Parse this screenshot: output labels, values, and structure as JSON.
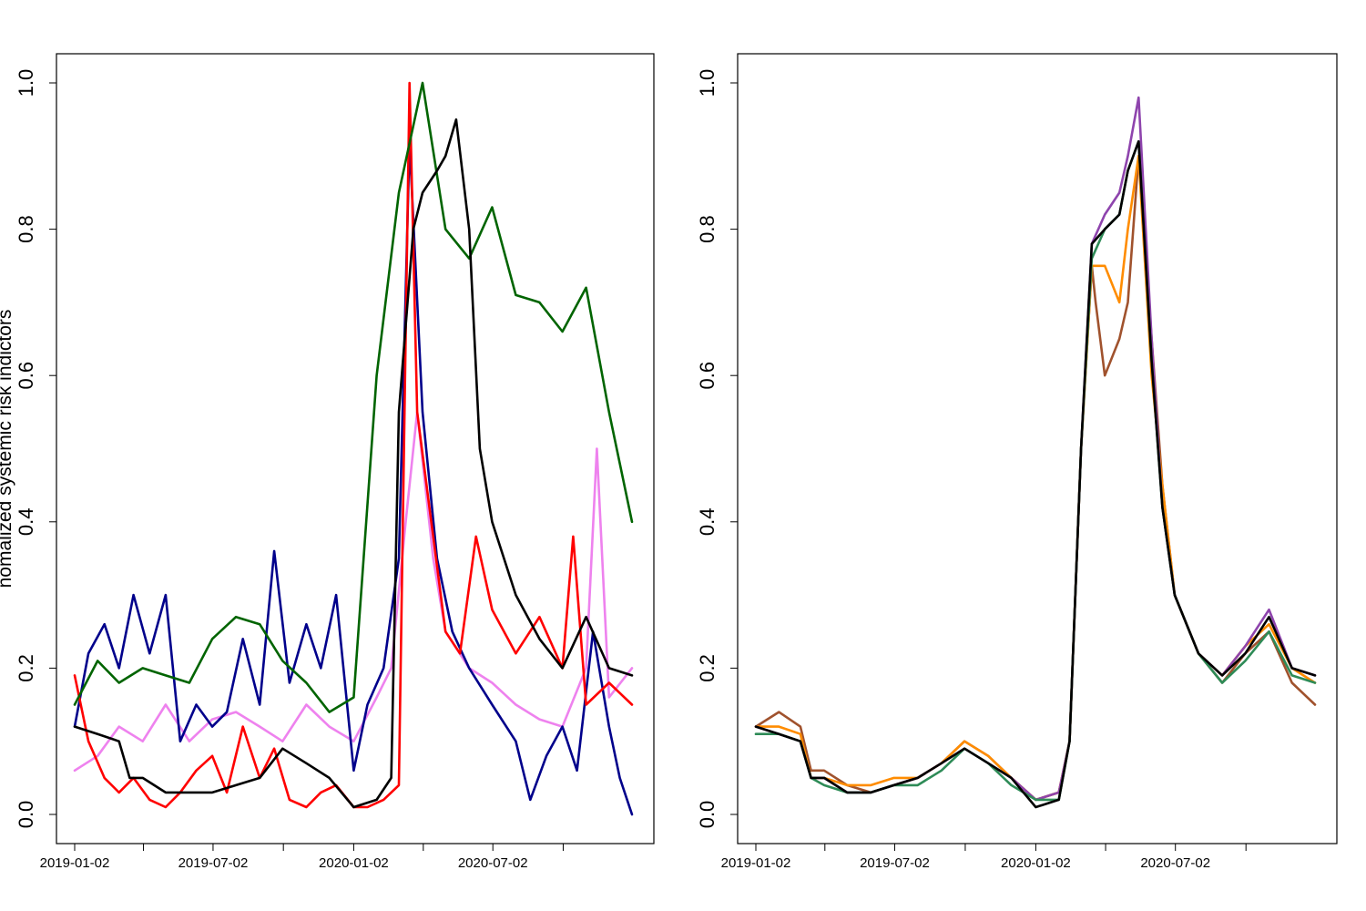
{
  "chart_data": [
    {
      "type": "line",
      "ylabel": "nomalized systemic risk indictors",
      "xlabel": "",
      "ylim": [
        0,
        1
      ],
      "y_ticks": [
        "0.0",
        "0.2",
        "0.4",
        "0.6",
        "0.8",
        "1.0"
      ],
      "x_tick_labels": [
        "2019-01-02",
        "2019-07-02",
        "2020-01-02",
        "2020-07-02"
      ],
      "x_tick_dates": [
        "2019-01-02",
        "2019-04-02",
        "2019-07-02",
        "2019-10-02",
        "2020-01-02",
        "2020-04-02",
        "2020-07-02",
        "2020-10-02"
      ],
      "x_range": [
        "2019-01-02",
        "2020-12-31"
      ],
      "grid": false,
      "series": [
        {
          "color": "#ee82ee",
          "x": [
            "2019-01-02",
            "2019-02-01",
            "2019-03-01",
            "2019-04-01",
            "2019-05-01",
            "2019-06-01",
            "2019-07-01",
            "2019-08-01",
            "2019-09-01",
            "2019-10-01",
            "2019-11-01",
            "2019-12-01",
            "2020-01-02",
            "2020-02-01",
            "2020-02-20",
            "2020-03-10",
            "2020-03-25",
            "2020-04-15",
            "2020-05-01",
            "2020-06-01",
            "2020-07-01",
            "2020-08-01",
            "2020-09-01",
            "2020-10-01",
            "2020-11-01",
            "2020-11-15",
            "2020-12-01",
            "2020-12-31"
          ],
          "y": [
            0.06,
            0.08,
            0.12,
            0.1,
            0.15,
            0.1,
            0.13,
            0.14,
            0.12,
            0.1,
            0.15,
            0.12,
            0.1,
            0.16,
            0.2,
            0.4,
            0.55,
            0.35,
            0.25,
            0.2,
            0.18,
            0.15,
            0.13,
            0.12,
            0.2,
            0.5,
            0.16,
            0.2
          ]
        },
        {
          "color": "#00008b",
          "x": [
            "2019-01-02",
            "2019-01-20",
            "2019-02-10",
            "2019-03-01",
            "2019-03-20",
            "2019-04-10",
            "2019-05-01",
            "2019-05-20",
            "2019-06-10",
            "2019-07-01",
            "2019-07-20",
            "2019-08-10",
            "2019-09-01",
            "2019-09-20",
            "2019-10-10",
            "2019-11-01",
            "2019-11-20",
            "2019-12-10",
            "2020-01-02",
            "2020-01-20",
            "2020-02-10",
            "2020-03-01",
            "2020-03-15",
            "2020-04-01",
            "2020-04-20",
            "2020-05-10",
            "2020-06-01",
            "2020-07-01",
            "2020-08-01",
            "2020-08-20",
            "2020-09-10",
            "2020-10-01",
            "2020-10-20",
            "2020-11-10",
            "2020-12-01",
            "2020-12-15",
            "2020-12-31"
          ],
          "y": [
            0.12,
            0.22,
            0.26,
            0.2,
            0.3,
            0.22,
            0.3,
            0.1,
            0.15,
            0.12,
            0.14,
            0.24,
            0.15,
            0.36,
            0.18,
            0.26,
            0.2,
            0.3,
            0.06,
            0.15,
            0.2,
            0.35,
            0.92,
            0.55,
            0.35,
            0.25,
            0.2,
            0.15,
            0.1,
            0.02,
            0.08,
            0.12,
            0.06,
            0.25,
            0.12,
            0.05,
            0.0
          ]
        },
        {
          "color": "#ff0000",
          "x": [
            "2019-01-02",
            "2019-01-20",
            "2019-02-10",
            "2019-03-01",
            "2019-03-20",
            "2019-04-10",
            "2019-05-01",
            "2019-05-20",
            "2019-06-10",
            "2019-07-01",
            "2019-07-20",
            "2019-08-10",
            "2019-09-01",
            "2019-09-20",
            "2019-10-10",
            "2019-11-01",
            "2019-11-20",
            "2019-12-10",
            "2020-01-02",
            "2020-01-20",
            "2020-02-10",
            "2020-03-01",
            "2020-03-15",
            "2020-03-25",
            "2020-04-10",
            "2020-05-01",
            "2020-05-20",
            "2020-06-10",
            "2020-07-01",
            "2020-08-01",
            "2020-09-01",
            "2020-10-01",
            "2020-10-15",
            "2020-11-01",
            "2020-12-01",
            "2020-12-31"
          ],
          "y": [
            0.19,
            0.1,
            0.05,
            0.03,
            0.05,
            0.02,
            0.01,
            0.03,
            0.06,
            0.08,
            0.03,
            0.12,
            0.05,
            0.09,
            0.02,
            0.01,
            0.03,
            0.04,
            0.01,
            0.01,
            0.02,
            0.04,
            1.0,
            0.55,
            0.42,
            0.25,
            0.22,
            0.38,
            0.28,
            0.22,
            0.27,
            0.2,
            0.38,
            0.15,
            0.18,
            0.15
          ]
        },
        {
          "color": "#006400",
          "x": [
            "2019-01-02",
            "2019-02-01",
            "2019-03-01",
            "2019-04-01",
            "2019-05-01",
            "2019-06-01",
            "2019-07-01",
            "2019-08-01",
            "2019-09-01",
            "2019-10-01",
            "2019-11-01",
            "2019-12-01",
            "2020-01-02",
            "2020-02-01",
            "2020-03-01",
            "2020-04-01",
            "2020-05-01",
            "2020-06-01",
            "2020-07-01",
            "2020-08-01",
            "2020-09-01",
            "2020-10-01",
            "2020-11-01",
            "2020-12-01",
            "2020-12-31"
          ],
          "y": [
            0.15,
            0.21,
            0.18,
            0.2,
            0.19,
            0.18,
            0.24,
            0.27,
            0.26,
            0.21,
            0.18,
            0.14,
            0.16,
            0.6,
            0.85,
            1.0,
            0.8,
            0.76,
            0.83,
            0.71,
            0.7,
            0.66,
            0.72,
            0.55,
            0.4
          ]
        },
        {
          "color": "#000000",
          "x": [
            "2019-01-02",
            "2019-02-01",
            "2019-03-01",
            "2019-03-15",
            "2019-04-01",
            "2019-05-01",
            "2019-06-01",
            "2019-07-01",
            "2019-08-01",
            "2019-09-01",
            "2019-10-01",
            "2019-11-01",
            "2019-12-01",
            "2020-01-02",
            "2020-02-01",
            "2020-02-20",
            "2020-03-01",
            "2020-03-20",
            "2020-04-01",
            "2020-04-20",
            "2020-05-01",
            "2020-05-15",
            "2020-06-01",
            "2020-06-15",
            "2020-07-01",
            "2020-08-01",
            "2020-09-01",
            "2020-10-01",
            "2020-11-01",
            "2020-12-01",
            "2020-12-31"
          ],
          "y": [
            0.12,
            0.11,
            0.1,
            0.05,
            0.05,
            0.03,
            0.03,
            0.03,
            0.04,
            0.05,
            0.09,
            0.07,
            0.05,
            0.01,
            0.02,
            0.05,
            0.55,
            0.8,
            0.85,
            0.88,
            0.9,
            0.95,
            0.8,
            0.5,
            0.4,
            0.3,
            0.24,
            0.2,
            0.27,
            0.2,
            0.19
          ]
        }
      ]
    },
    {
      "type": "line",
      "ylabel": "",
      "xlabel": "",
      "ylim": [
        0,
        1
      ],
      "y_ticks": [
        "0.0",
        "0.2",
        "0.4",
        "0.6",
        "0.8",
        "1.0"
      ],
      "x_tick_labels": [
        "2019-01-02",
        "2019-07-02",
        "2020-01-02",
        "2020-07-02"
      ],
      "x_tick_dates": [
        "2019-01-02",
        "2019-04-02",
        "2019-07-02",
        "2019-10-02",
        "2020-01-02",
        "2020-04-02",
        "2020-07-02",
        "2020-10-02"
      ],
      "x_range": [
        "2019-01-02",
        "2020-12-31"
      ],
      "grid": false,
      "series": [
        {
          "color": "#a0522d",
          "x": [
            "2019-01-02",
            "2019-02-01",
            "2019-03-01",
            "2019-03-15",
            "2019-04-01",
            "2019-05-01",
            "2019-06-01",
            "2019-07-01",
            "2019-08-01",
            "2019-09-01",
            "2019-10-01",
            "2019-11-01",
            "2019-12-01",
            "2020-01-02",
            "2020-02-01",
            "2020-02-15",
            "2020-03-01",
            "2020-03-15",
            "2020-03-20",
            "2020-04-01",
            "2020-04-20",
            "2020-05-01",
            "2020-05-15",
            "2020-06-01",
            "2020-06-15",
            "2020-07-01",
            "2020-08-01",
            "2020-09-01",
            "2020-10-01",
            "2020-11-01",
            "2020-12-01",
            "2020-12-31"
          ],
          "y": [
            0.12,
            0.14,
            0.12,
            0.06,
            0.06,
            0.04,
            0.03,
            0.04,
            0.05,
            0.07,
            0.1,
            0.08,
            0.05,
            0.02,
            0.03,
            0.1,
            0.5,
            0.75,
            0.7,
            0.6,
            0.65,
            0.7,
            0.9,
            0.65,
            0.45,
            0.3,
            0.22,
            0.18,
            0.22,
            0.25,
            0.18,
            0.15
          ]
        },
        {
          "color": "#ff8c00",
          "x": [
            "2019-01-02",
            "2019-02-01",
            "2019-03-01",
            "2019-03-15",
            "2019-04-01",
            "2019-05-01",
            "2019-06-01",
            "2019-07-01",
            "2019-08-01",
            "2019-09-01",
            "2019-10-01",
            "2019-11-01",
            "2019-12-01",
            "2020-01-02",
            "2020-02-01",
            "2020-02-15",
            "2020-03-01",
            "2020-03-15",
            "2020-04-01",
            "2020-04-20",
            "2020-05-01",
            "2020-05-15",
            "2020-06-01",
            "2020-06-15",
            "2020-07-01",
            "2020-08-01",
            "2020-09-01",
            "2020-10-01",
            "2020-11-01",
            "2020-12-01",
            "2020-12-31"
          ],
          "y": [
            0.12,
            0.12,
            0.11,
            0.05,
            0.05,
            0.04,
            0.04,
            0.05,
            0.05,
            0.07,
            0.1,
            0.08,
            0.05,
            0.02,
            0.03,
            0.1,
            0.5,
            0.75,
            0.75,
            0.7,
            0.8,
            0.9,
            0.6,
            0.45,
            0.3,
            0.22,
            0.19,
            0.23,
            0.26,
            0.2,
            0.18
          ]
        },
        {
          "color": "#8e44ad",
          "x": [
            "2019-01-02",
            "2019-02-01",
            "2019-03-01",
            "2019-03-15",
            "2019-04-01",
            "2019-05-01",
            "2019-06-01",
            "2019-07-01",
            "2019-08-01",
            "2019-09-01",
            "2019-10-01",
            "2019-11-01",
            "2019-12-01",
            "2020-01-02",
            "2020-02-01",
            "2020-02-15",
            "2020-03-01",
            "2020-03-15",
            "2020-04-01",
            "2020-04-20",
            "2020-05-01",
            "2020-05-15",
            "2020-06-01",
            "2020-06-15",
            "2020-07-01",
            "2020-08-01",
            "2020-09-01",
            "2020-10-01",
            "2020-11-01",
            "2020-12-01",
            "2020-12-31"
          ],
          "y": [
            0.12,
            0.11,
            0.1,
            0.05,
            0.05,
            0.03,
            0.03,
            0.04,
            0.05,
            0.07,
            0.09,
            0.07,
            0.05,
            0.02,
            0.03,
            0.1,
            0.5,
            0.78,
            0.82,
            0.85,
            0.9,
            0.98,
            0.65,
            0.42,
            0.3,
            0.22,
            0.19,
            0.23,
            0.28,
            0.2,
            0.19
          ]
        },
        {
          "color": "#2e8b57",
          "x": [
            "2019-01-02",
            "2019-02-01",
            "2019-03-01",
            "2019-03-15",
            "2019-04-01",
            "2019-05-01",
            "2019-06-01",
            "2019-07-01",
            "2019-08-01",
            "2019-09-01",
            "2019-10-01",
            "2019-11-01",
            "2019-12-01",
            "2020-01-02",
            "2020-02-01",
            "2020-02-15",
            "2020-03-01",
            "2020-03-15",
            "2020-04-01",
            "2020-04-20",
            "2020-05-01",
            "2020-05-15",
            "2020-06-01",
            "2020-06-15",
            "2020-07-01",
            "2020-08-01",
            "2020-09-01",
            "2020-10-01",
            "2020-11-01",
            "2020-12-01",
            "2020-12-31"
          ],
          "y": [
            0.11,
            0.11,
            0.1,
            0.05,
            0.04,
            0.03,
            0.03,
            0.04,
            0.04,
            0.06,
            0.09,
            0.07,
            0.04,
            0.02,
            0.02,
            0.1,
            0.5,
            0.76,
            0.8,
            0.82,
            0.88,
            0.92,
            0.62,
            0.42,
            0.3,
            0.22,
            0.18,
            0.21,
            0.25,
            0.19,
            0.18
          ]
        },
        {
          "color": "#000000",
          "x": [
            "2019-01-02",
            "2019-02-01",
            "2019-03-01",
            "2019-03-15",
            "2019-04-01",
            "2019-05-01",
            "2019-06-01",
            "2019-07-01",
            "2019-08-01",
            "2019-09-01",
            "2019-10-01",
            "2019-11-01",
            "2019-12-01",
            "2020-01-02",
            "2020-02-01",
            "2020-02-15",
            "2020-03-01",
            "2020-03-15",
            "2020-04-01",
            "2020-04-20",
            "2020-05-01",
            "2020-05-15",
            "2020-06-01",
            "2020-06-15",
            "2020-07-01",
            "2020-08-01",
            "2020-09-01",
            "2020-10-01",
            "2020-11-01",
            "2020-12-01",
            "2020-12-31"
          ],
          "y": [
            0.12,
            0.11,
            0.1,
            0.05,
            0.05,
            0.03,
            0.03,
            0.04,
            0.05,
            0.07,
            0.09,
            0.07,
            0.05,
            0.01,
            0.02,
            0.1,
            0.5,
            0.78,
            0.8,
            0.82,
            0.88,
            0.92,
            0.62,
            0.42,
            0.3,
            0.22,
            0.19,
            0.22,
            0.27,
            0.2,
            0.19
          ]
        }
      ]
    }
  ]
}
